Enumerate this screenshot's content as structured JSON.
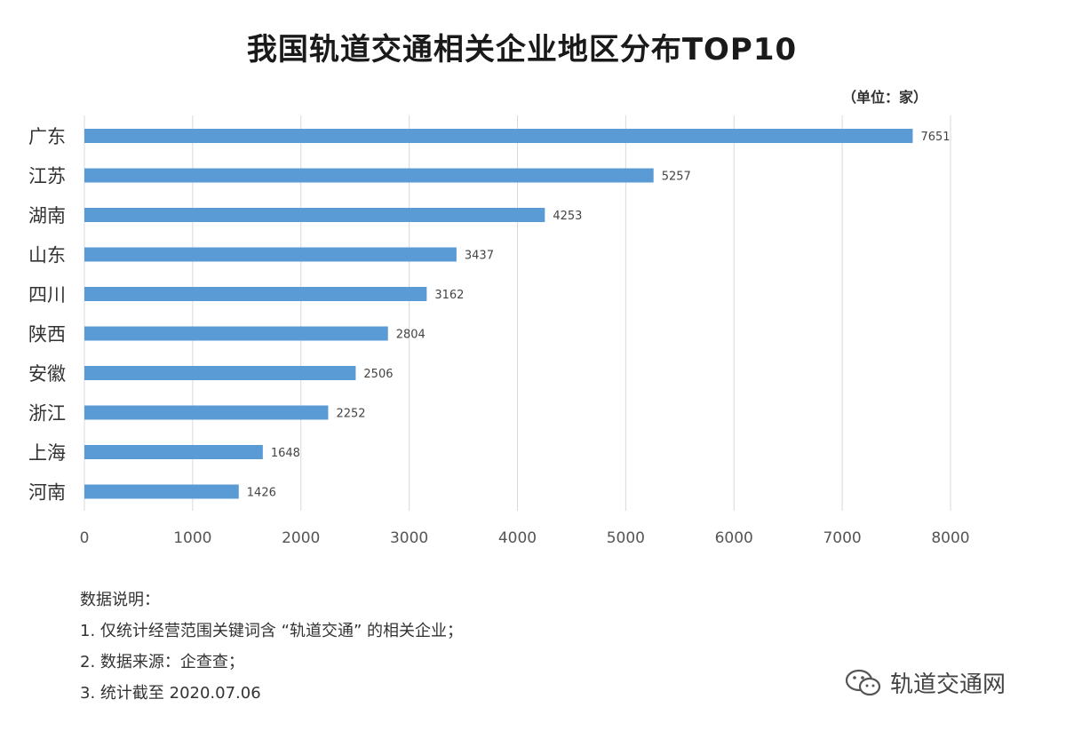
{
  "chart_data": {
    "type": "bar",
    "orientation": "horizontal",
    "title": "我国轨道交通相关企业地区分布TOP10",
    "unit": "（单位：家）",
    "categories": [
      "广东",
      "江苏",
      "湖南",
      "山东",
      "四川",
      "陕西",
      "安徽",
      "浙江",
      "上海",
      "河南"
    ],
    "values": [
      7651,
      5257,
      4253,
      3437,
      3162,
      2804,
      2506,
      2252,
      1648,
      1426
    ],
    "xlim": [
      0,
      8000
    ],
    "xticks": [
      0,
      1000,
      2000,
      3000,
      4000,
      5000,
      6000,
      7000,
      8000
    ],
    "grid": "vertical",
    "bar_color": "#5b9bd5"
  },
  "notes": {
    "heading": "数据说明：",
    "items": [
      "1. 仅统计经营范围关键词含 “轨道交通” 的相关企业；",
      "2. 数据来源：企查查；",
      "3. 统计截至 2020.07.06"
    ]
  },
  "watermark": {
    "text": "轨道交通网",
    "icon": "wechat-icon"
  }
}
